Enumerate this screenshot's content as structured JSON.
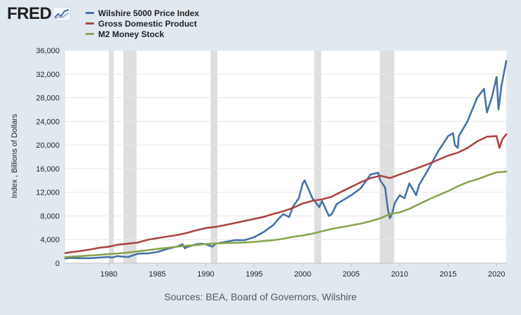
{
  "logo": {
    "text": "FRED",
    "icon": "fred-chart-icon"
  },
  "source": "Sources: BEA, Board of Governors, Wilshire",
  "chart_data": {
    "type": "line",
    "title": "",
    "xlabel": "",
    "ylabel": "Index , Billions of Dollars",
    "xlim": [
      1975.5,
      2021.0
    ],
    "ylim": [
      0,
      36000
    ],
    "grid": true,
    "legend_position": "top-left",
    "x_ticks": [
      1980,
      1985,
      1990,
      1995,
      2000,
      2005,
      2010,
      2015,
      2020
    ],
    "y_ticks": [
      0,
      4000,
      8000,
      12000,
      16000,
      20000,
      24000,
      28000,
      32000,
      36000
    ],
    "recessions": [
      [
        1980.0,
        1980.5
      ],
      [
        1981.5,
        1982.85
      ],
      [
        1990.5,
        1991.2
      ],
      [
        2001.2,
        2001.9
      ],
      [
        2007.95,
        2009.45
      ]
    ],
    "series": [
      {
        "name": "Wilshire 5000 Price Index",
        "color": "#4572a7",
        "x": [
          1975.5,
          1976,
          1977,
          1978,
          1979,
          1980,
          1980.3,
          1980.9,
          1981.5,
          1982,
          1982.6,
          1983,
          1983.5,
          1984,
          1985,
          1986,
          1987,
          1987.6,
          1987.85,
          1988,
          1989,
          1989.6,
          1990,
          1990.7,
          1991,
          1992,
          1993,
          1994,
          1995,
          1996,
          1997,
          1997.5,
          1998,
          1998.6,
          1999,
          1999.6,
          2000,
          2000.2,
          2000.6,
          2001,
          2001.7,
          2002,
          2002.7,
          2003,
          2003.5,
          2004,
          2005,
          2006,
          2007,
          2007.8,
          2008,
          2008.5,
          2008.8,
          2009,
          2009.2,
          2009.5,
          2010,
          2010.5,
          2011,
          2011.7,
          2012,
          2013,
          2014,
          2015,
          2015.5,
          2015.7,
          2016,
          2016.1,
          2017,
          2018,
          2018.7,
          2019,
          2019.5,
          2020,
          2020.2,
          2020.5,
          2021
        ],
        "values": [
          800,
          900,
          850,
          850,
          950,
          1050,
          950,
          1200,
          1100,
          1050,
          1400,
          1600,
          1650,
          1650,
          1900,
          2400,
          2800,
          3200,
          2500,
          2700,
          3200,
          3300,
          3200,
          2800,
          3300,
          3600,
          3900,
          3900,
          4400,
          5300,
          6500,
          7500,
          8300,
          7800,
          9600,
          11000,
          13500,
          14000,
          12500,
          11000,
          9500,
          10500,
          8000,
          8300,
          10000,
          10500,
          11500,
          12700,
          15000,
          15300,
          14000,
          12800,
          9000,
          7600,
          8300,
          10200,
          11500,
          11000,
          13500,
          11500,
          13200,
          16000,
          19000,
          21500,
          22000,
          20000,
          19500,
          21500,
          24000,
          28000,
          29500,
          25500,
          28000,
          31500,
          26000,
          30000,
          34200
        ]
      },
      {
        "name": "Gross Domestic Product",
        "color": "#aa4643",
        "x": [
          1975.5,
          1976,
          1977,
          1978,
          1979,
          1980,
          1981,
          1982,
          1983,
          1984,
          1985,
          1986,
          1987,
          1988,
          1989,
          1990,
          1991,
          1992,
          1993,
          1994,
          1995,
          1996,
          1997,
          1998,
          1999,
          2000,
          2001,
          2002,
          2003,
          2004,
          2005,
          2006,
          2007,
          2008,
          2009,
          2010,
          2011,
          2012,
          2013,
          2014,
          2015,
          2016,
          2017,
          2018,
          2019,
          2020,
          2020.3,
          2020.6,
          2021
        ],
        "values": [
          1700,
          1850,
          2050,
          2300,
          2600,
          2800,
          3150,
          3300,
          3500,
          3950,
          4250,
          4500,
          4750,
          5100,
          5550,
          5950,
          6150,
          6450,
          6800,
          7150,
          7500,
          7850,
          8350,
          8800,
          9350,
          10100,
          10550,
          10800,
          11250,
          12100,
          12900,
          13700,
          14400,
          14800,
          14400,
          15000,
          15600,
          16200,
          16800,
          17500,
          18200,
          18700,
          19500,
          20600,
          21400,
          21500,
          19500,
          21000,
          21800
        ]
      },
      {
        "name": "M2 Money Stock",
        "color": "#89a54e",
        "x": [
          1975.5,
          1976,
          1977,
          1978,
          1979,
          1980,
          1981,
          1982,
          1983,
          1984,
          1985,
          1986,
          1987,
          1988,
          1989,
          1990,
          1991,
          1992,
          1993,
          1994,
          1995,
          1996,
          1997,
          1998,
          1999,
          2000,
          2001,
          2002,
          2003,
          2004,
          2005,
          2006,
          2007,
          2008,
          2009,
          2010,
          2011,
          2012,
          2013,
          2014,
          2015,
          2016,
          2017,
          2018,
          2019,
          2020,
          2020.3,
          2021
        ],
        "values": [
          1000,
          1100,
          1200,
          1300,
          1400,
          1550,
          1650,
          1800,
          2000,
          2200,
          2400,
          2600,
          2800,
          2950,
          3050,
          3250,
          3350,
          3400,
          3450,
          3500,
          3600,
          3750,
          3900,
          4150,
          4450,
          4700,
          5000,
          5400,
          5800,
          6100,
          6400,
          6700,
          7100,
          7600,
          8300,
          8600,
          9200,
          10000,
          10800,
          11500,
          12200,
          13000,
          13700,
          14200,
          14800,
          15400,
          15400,
          15500
        ]
      }
    ]
  }
}
